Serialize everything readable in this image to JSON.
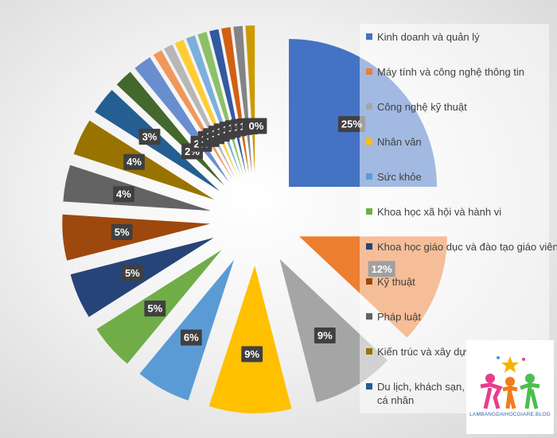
{
  "chart_data": {
    "type": "pie",
    "categories": [
      "Kinh doanh và quản lý",
      "Máy tính và công nghệ thông tin",
      "Công nghệ kỹ thuật",
      "Nhân văn",
      "Sức khỏe",
      "Khoa học xã hội và hành vi",
      "Khoa học giáo dục và đào tạo giáo viên",
      "Kỹ thuật",
      "Pháp luật",
      "Kiến trúc và xây dựng",
      "Du lịch, khách sạn, thể thao và dịch vụ cá nhân",
      null,
      null,
      null,
      null,
      null,
      null,
      null,
      null,
      null,
      null,
      null,
      null
    ],
    "values": [
      25,
      12,
      9,
      9,
      6,
      5,
      5,
      5,
      4,
      4,
      3,
      2,
      2,
      1,
      1,
      1,
      1,
      1,
      1,
      1,
      1,
      1,
      0
    ],
    "value_labels": [
      "25%",
      "12%",
      "9%",
      "9%",
      "6%",
      "5%",
      "5%",
      "5%",
      "4%",
      "4%",
      "3%",
      "2%",
      "2%",
      "1%",
      "1%",
      "1%",
      "1%",
      "1%",
      "1%",
      "1%",
      "1%",
      "1%",
      "0%"
    ],
    "colors": [
      "#4472c4",
      "#ed7d31",
      "#a5a5a5",
      "#ffc000",
      "#5b9bd5",
      "#70ad47",
      "#264478",
      "#9e480e",
      "#636363",
      "#997300",
      "#255e91",
      "#43682b",
      "#698ed0",
      "#f1975a",
      "#b7b7b7",
      "#ffcd33",
      "#7cafdd",
      "#8cc168",
      "#335aa1",
      "#d26012",
      "#848484",
      "#cc9a00",
      "#4e86c3"
    ],
    "legend": "right",
    "watermark": "LAMBANGDAIHOCGIARE.BLOG"
  }
}
